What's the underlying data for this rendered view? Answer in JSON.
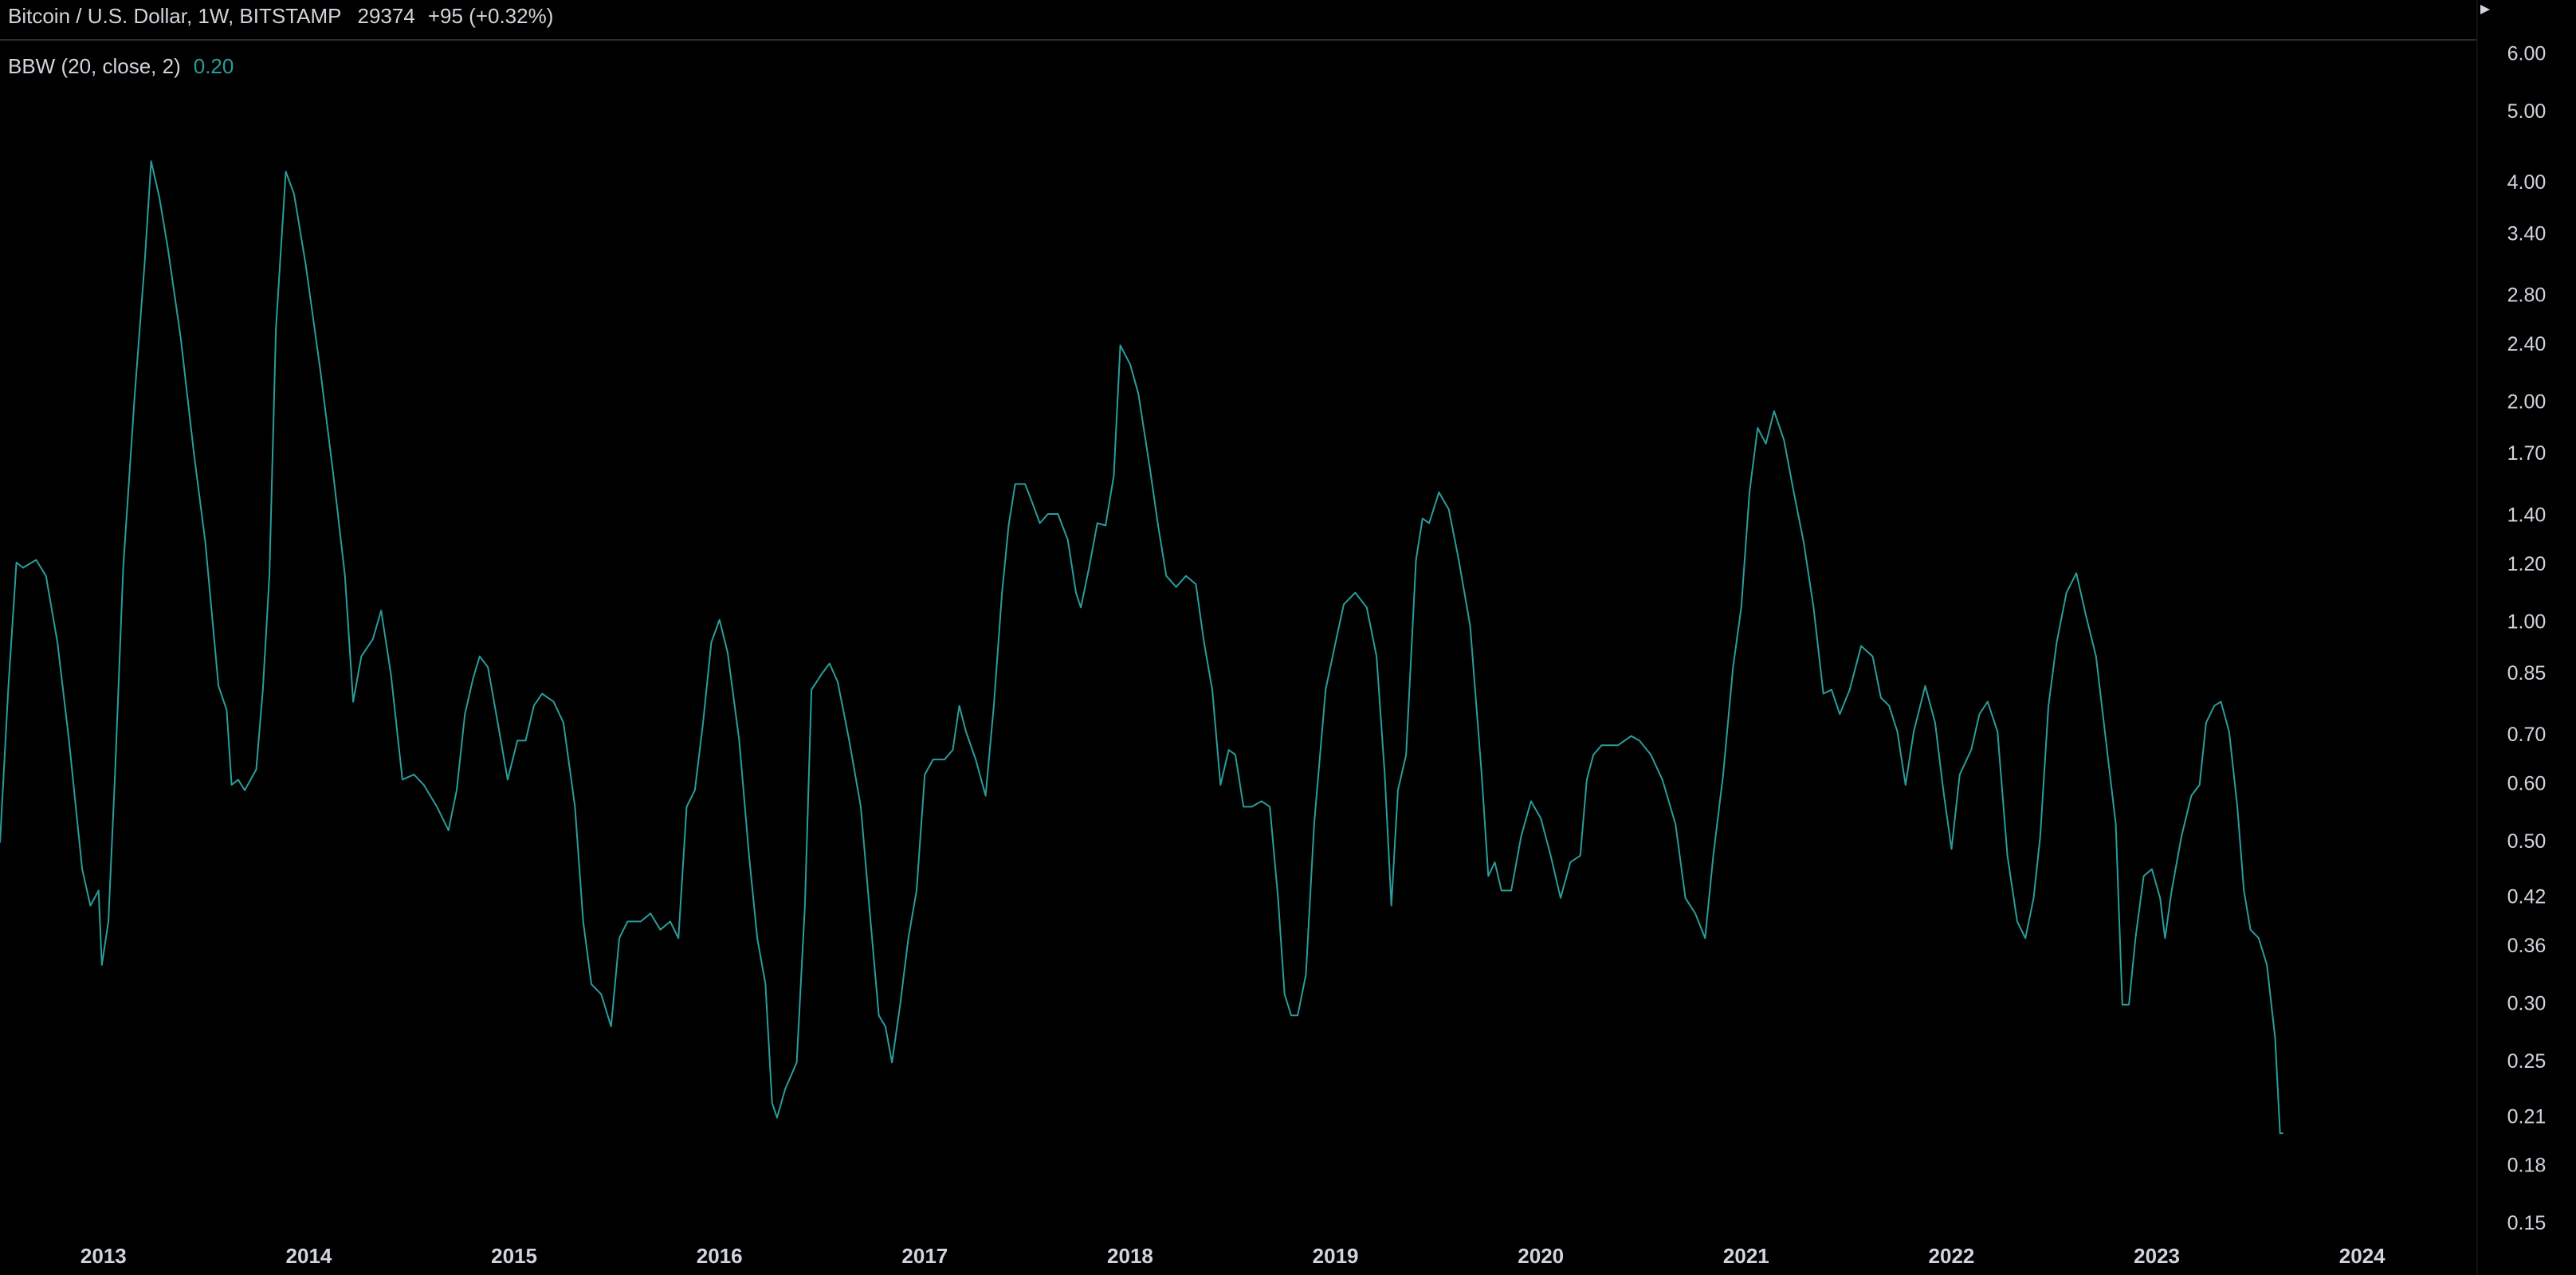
{
  "chart_data": {
    "type": "line",
    "title": "Bitcoin / U.S. Dollar, 1W, BITSTAMP",
    "last_price": 29374,
    "change_label": "+95 (+0.32%)",
    "last_value_label": "0.20",
    "log_scale": true,
    "grid": false,
    "background": "#000000",
    "xlim": [
      2012.496,
      2024.56
    ],
    "xticks": [
      2013,
      2014,
      2015,
      2016,
      2017,
      2018,
      2019,
      2020,
      2021,
      2022,
      2023,
      2024
    ],
    "ylim": [
      0.145,
      6.26
    ],
    "yticks": [
      {
        "value": 6,
        "label": "6.00"
      },
      {
        "value": 5,
        "label": "5.00"
      },
      {
        "value": 4,
        "label": "4.00"
      },
      {
        "value": 3.4,
        "label": "3.40"
      },
      {
        "value": 2.8,
        "label": "2.80"
      },
      {
        "value": 2.4,
        "label": "2.40"
      },
      {
        "value": 2,
        "label": "2.00"
      },
      {
        "value": 1.7,
        "label": "1.70"
      },
      {
        "value": 1.4,
        "label": "1.40"
      },
      {
        "value": 1.2,
        "label": "1.20"
      },
      {
        "value": 1,
        "label": "1.00"
      },
      0.85,
      {
        "value": 0.7,
        "label": "0.70"
      },
      {
        "value": 0.6,
        "label": "0.60"
      },
      {
        "value": 0.5,
        "label": "0.50"
      },
      0.42,
      0.36,
      {
        "value": 0.3,
        "label": "0.30"
      },
      0.25,
      0.21,
      0.18,
      0.15
    ],
    "x": [
      2012.496,
      2012.536,
      2012.576,
      2012.608,
      2012.672,
      2012.72,
      2012.776,
      2012.832,
      2012.896,
      2012.936,
      2012.976,
      2012.992,
      2013.024,
      2013.056,
      2013.096,
      2013.152,
      2013.2,
      2013.232,
      2013.272,
      2013.312,
      2013.376,
      2013.44,
      2013.496,
      2013.56,
      2013.6,
      2013.624,
      2013.656,
      2013.688,
      2013.744,
      2013.776,
      2013.808,
      2013.84,
      2013.888,
      2013.928,
      2013.984,
      2014.056,
      2014.12,
      2014.176,
      2014.216,
      2014.256,
      2014.312,
      2014.352,
      2014.4,
      2014.456,
      2014.512,
      2014.56,
      2014.624,
      2014.68,
      2014.72,
      2014.76,
      2014.8,
      2014.832,
      2014.872,
      2014.92,
      2014.968,
      2015.016,
      2015.056,
      2015.096,
      2015.136,
      2015.192,
      2015.24,
      2015.296,
      2015.336,
      2015.376,
      2015.424,
      2015.472,
      2015.512,
      2015.552,
      2015.616,
      2015.664,
      2015.712,
      2015.76,
      2015.8,
      2015.84,
      2015.88,
      2015.92,
      2015.96,
      2016.0,
      2016.04,
      2016.096,
      2016.144,
      2016.184,
      2016.224,
      2016.256,
      2016.28,
      2016.32,
      2016.376,
      2016.416,
      2016.448,
      2016.496,
      2016.536,
      2016.576,
      2016.632,
      2016.688,
      2016.736,
      2016.776,
      2016.808,
      2016.84,
      2016.88,
      2016.92,
      2016.96,
      2017.0,
      2017.04,
      2017.096,
      2017.136,
      2017.168,
      2017.2,
      2017.248,
      2017.296,
      2017.336,
      2017.376,
      2017.408,
      2017.44,
      2017.488,
      2017.52,
      2017.56,
      2017.6,
      2017.648,
      2017.696,
      2017.736,
      2017.76,
      2017.8,
      2017.84,
      2017.88,
      2017.92,
      2017.952,
      2018.0,
      2018.04,
      2018.096,
      2018.136,
      2018.176,
      2018.224,
      2018.272,
      2018.32,
      2018.36,
      2018.4,
      2018.44,
      2018.48,
      2018.512,
      2018.552,
      2018.592,
      2018.64,
      2018.68,
      2018.72,
      2018.752,
      2018.784,
      2018.816,
      2018.856,
      2018.896,
      2018.952,
      2019.0,
      2019.04,
      2019.096,
      2019.152,
      2019.2,
      2019.24,
      2019.272,
      2019.304,
      2019.344,
      2019.392,
      2019.424,
      2019.456,
      2019.504,
      2019.552,
      2019.6,
      2019.656,
      2019.712,
      2019.744,
      2019.776,
      2019.808,
      2019.856,
      2019.904,
      2019.952,
      2020.0,
      2020.048,
      2020.096,
      2020.144,
      2020.192,
      2020.224,
      2020.256,
      2020.296,
      2020.376,
      2020.44,
      2020.48,
      2020.536,
      2020.592,
      2020.656,
      2020.704,
      2020.752,
      2020.8,
      2020.84,
      2020.888,
      2020.936,
      2020.976,
      2021.016,
      2021.056,
      2021.096,
      2021.136,
      2021.184,
      2021.232,
      2021.28,
      2021.328,
      2021.376,
      2021.416,
      2021.456,
      2021.504,
      2021.56,
      2021.616,
      2021.656,
      2021.696,
      2021.736,
      2021.776,
      2021.816,
      2021.872,
      2021.92,
      2021.96,
      2022.0,
      2022.04,
      2022.096,
      2022.136,
      2022.176,
      2022.224,
      2022.272,
      2022.32,
      2022.36,
      2022.4,
      2022.432,
      2022.472,
      2022.512,
      2022.56,
      2022.608,
      2022.656,
      2022.704,
      2022.76,
      2022.8,
      2022.832,
      2022.864,
      2022.896,
      2022.936,
      2022.976,
      2023.016,
      2023.04,
      2023.072,
      2023.12,
      2023.168,
      2023.208,
      2023.24,
      2023.28,
      2023.312,
      2023.352,
      2023.392,
      2023.424,
      2023.456,
      2023.496,
      2023.536,
      2023.576,
      2023.6,
      2023.616
    ],
    "series": [
      {
        "name": "BBW (20, close, 2)",
        "color": "#2a9d9b",
        "values": [
          0.5,
          0.81,
          1.21,
          1.19,
          1.22,
          1.16,
          0.94,
          0.69,
          0.46,
          0.41,
          0.43,
          0.34,
          0.39,
          0.62,
          1.19,
          2.05,
          3.1,
          4.29,
          3.83,
          3.28,
          2.46,
          1.71,
          1.29,
          0.82,
          0.76,
          0.6,
          0.61,
          0.59,
          0.63,
          0.81,
          1.16,
          2.53,
          4.15,
          3.87,
          3.11,
          2.22,
          1.59,
          1.16,
          0.78,
          0.9,
          0.95,
          1.04,
          0.85,
          0.61,
          0.62,
          0.6,
          0.56,
          0.52,
          0.59,
          0.75,
          0.84,
          0.9,
          0.87,
          0.73,
          0.61,
          0.69,
          0.69,
          0.77,
          0.8,
          0.78,
          0.73,
          0.56,
          0.39,
          0.32,
          0.31,
          0.28,
          0.37,
          0.39,
          0.39,
          0.4,
          0.38,
          0.39,
          0.37,
          0.56,
          0.59,
          0.73,
          0.94,
          1.01,
          0.91,
          0.69,
          0.48,
          0.37,
          0.32,
          0.22,
          0.21,
          0.23,
          0.25,
          0.41,
          0.81,
          0.85,
          0.88,
          0.83,
          0.69,
          0.56,
          0.39,
          0.29,
          0.28,
          0.25,
          0.3,
          0.37,
          0.43,
          0.62,
          0.65,
          0.65,
          0.67,
          0.77,
          0.71,
          0.65,
          0.58,
          0.77,
          1.1,
          1.36,
          1.55,
          1.55,
          1.47,
          1.37,
          1.41,
          1.41,
          1.3,
          1.1,
          1.05,
          1.19,
          1.37,
          1.36,
          1.59,
          2.4,
          2.26,
          2.06,
          1.63,
          1.36,
          1.16,
          1.12,
          1.16,
          1.13,
          0.94,
          0.81,
          0.6,
          0.67,
          0.66,
          0.56,
          0.56,
          0.57,
          0.56,
          0.42,
          0.31,
          0.29,
          0.29,
          0.33,
          0.53,
          0.81,
          0.94,
          1.06,
          1.1,
          1.05,
          0.9,
          0.62,
          0.41,
          0.59,
          0.66,
          1.22,
          1.39,
          1.37,
          1.51,
          1.43,
          1.22,
          0.99,
          0.62,
          0.45,
          0.47,
          0.43,
          0.43,
          0.51,
          0.57,
          0.54,
          0.48,
          0.42,
          0.47,
          0.48,
          0.61,
          0.66,
          0.68,
          0.68,
          0.7,
          0.69,
          0.66,
          0.61,
          0.53,
          0.42,
          0.4,
          0.37,
          0.48,
          0.62,
          0.87,
          1.05,
          1.51,
          1.85,
          1.76,
          1.95,
          1.78,
          1.51,
          1.29,
          1.05,
          0.8,
          0.81,
          0.75,
          0.81,
          0.93,
          0.9,
          0.79,
          0.77,
          0.71,
          0.6,
          0.71,
          0.82,
          0.73,
          0.59,
          0.49,
          0.62,
          0.67,
          0.75,
          0.78,
          0.71,
          0.48,
          0.39,
          0.37,
          0.42,
          0.51,
          0.77,
          0.94,
          1.1,
          1.17,
          1.02,
          0.9,
          0.66,
          0.53,
          0.3,
          0.3,
          0.37,
          0.45,
          0.46,
          0.42,
          0.37,
          0.43,
          0.51,
          0.58,
          0.6,
          0.73,
          0.77,
          0.78,
          0.71,
          0.56,
          0.43,
          0.38,
          0.37,
          0.34,
          0.27,
          0.2,
          0.2
        ]
      }
    ]
  }
}
